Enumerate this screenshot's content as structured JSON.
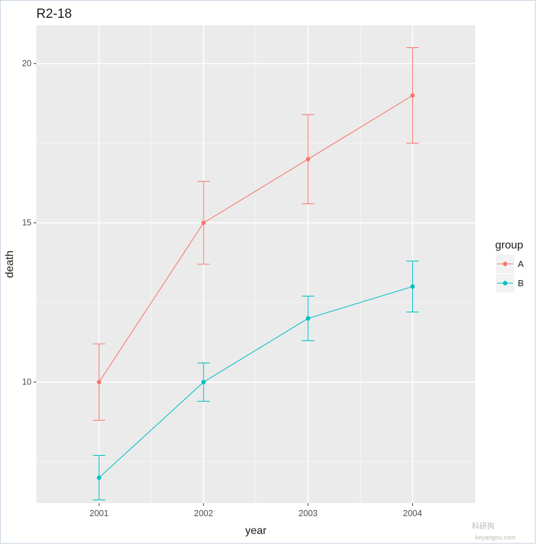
{
  "chart_data": {
    "type": "line",
    "title": "R2-18",
    "xlabel": "year",
    "ylabel": "death",
    "categories": [
      "2001",
      "2002",
      "2003",
      "2004"
    ],
    "yticks": [
      10,
      15,
      20
    ],
    "ylim": [
      6.2,
      21.2
    ],
    "grid": true,
    "legend": {
      "title": "group",
      "placement": "right"
    },
    "series": [
      {
        "name": "A",
        "color": "#F8766D",
        "values": [
          10,
          15,
          17,
          19
        ],
        "err_low": [
          8.8,
          13.7,
          15.6,
          17.5
        ],
        "err_high": [
          11.2,
          16.3,
          18.4,
          20.5
        ]
      },
      {
        "name": "B",
        "color": "#00BFC4",
        "values": [
          7,
          10,
          12,
          13
        ],
        "err_low": [
          6.3,
          9.4,
          11.3,
          12.2
        ],
        "err_high": [
          7.7,
          10.6,
          12.7,
          13.8
        ]
      }
    ]
  },
  "watermark": {
    "text": "科研狗",
    "subtext": "keyangou.com"
  }
}
